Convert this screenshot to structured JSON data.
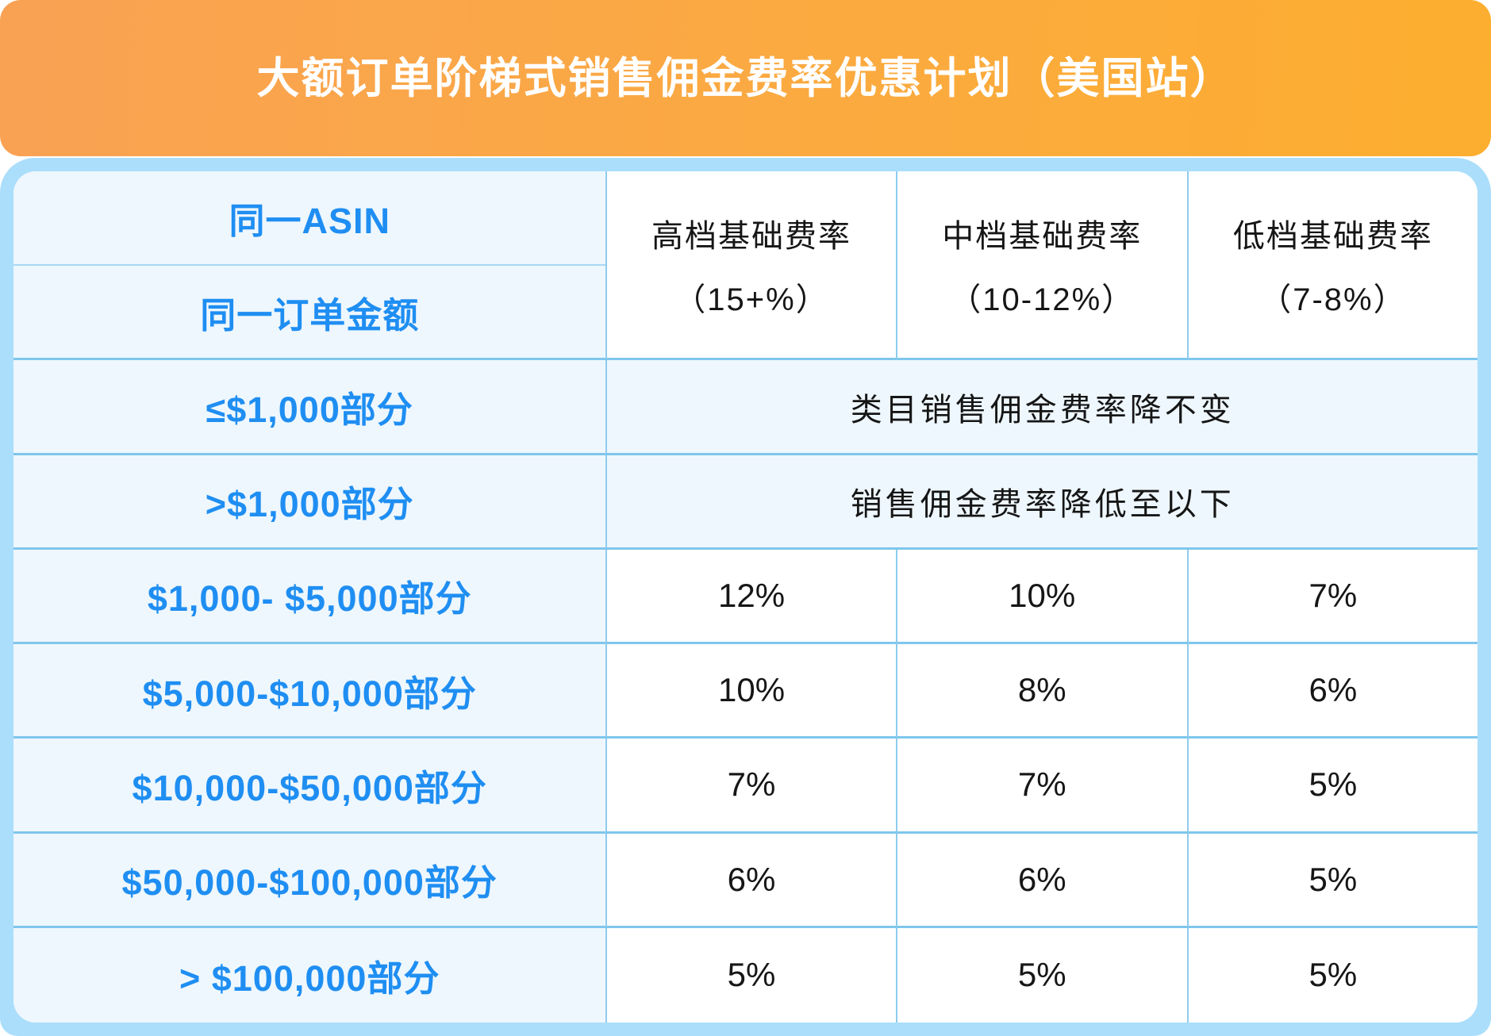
{
  "title": "大额订单阶梯式销售佣金费率优惠计划（美国站）",
  "colors": {
    "banner_gradient_left": "#f9a254",
    "banner_gradient_right": "#fcae2f",
    "card_border_blue": "#abdefb",
    "cell_light_blue": "#eef7fd",
    "divider_blue": "#7fc6ec",
    "label_blue": "#1f8ef2",
    "text_black": "#161616",
    "title_white": "#ffffff"
  },
  "table": {
    "row_headers": [
      "同一ASIN",
      "同一订单金额"
    ],
    "rate_columns": [
      {
        "label": "高档基础费率",
        "range": "（15+%）"
      },
      {
        "label": "中档基础费率",
        "range": "（10-12%）"
      },
      {
        "label": "低档基础费率",
        "range": "（7-8%）"
      }
    ],
    "band_rows": [
      {
        "label": "≤$1,000部分",
        "note": "类目销售佣金费率降不变"
      },
      {
        "label": ">$1,000部分",
        "note": "销售佣金费率降低至以下"
      }
    ],
    "tier_rows": [
      {
        "label": "$1,000- $5,000部分",
        "rates": [
          "12%",
          "10%",
          "7%"
        ]
      },
      {
        "label": "$5,000-$10,000部分",
        "rates": [
          "10%",
          "8%",
          "6%"
        ]
      },
      {
        "label": "$10,000-$50,000部分",
        "rates": [
          "7%",
          "7%",
          "5%"
        ]
      },
      {
        "label": "$50,000-$100,000部分",
        "rates": [
          "6%",
          "6%",
          "5%"
        ]
      },
      {
        "label": "> $100,000部分",
        "rates": [
          "5%",
          "5%",
          "5%"
        ]
      }
    ]
  },
  "chart_data": {
    "type": "table",
    "title": "大额订单阶梯式销售佣金费率优惠计划（美国站）",
    "columns": [
      "同一ASIN / 同一订单金额",
      "高档基础费率（15+%）",
      "中档基础费率（10-12%）",
      "低档基础费率（7-8%）"
    ],
    "rows": [
      [
        "≤$1,000部分",
        "类目销售佣金费率降不变"
      ],
      [
        ">$1,000部分",
        "销售佣金费率降低至以下"
      ],
      [
        "$1,000- $5,000部分",
        "12%",
        "10%",
        "7%"
      ],
      [
        "$5,000-$10,000部分",
        "10%",
        "8%",
        "6%"
      ],
      [
        "$10,000-$50,000部分",
        "7%",
        "7%",
        "5%"
      ],
      [
        "$50,000-$100,000部分",
        "6%",
        "6%",
        "5%"
      ],
      [
        "> $100,000部分",
        "5%",
        "5%",
        "5%"
      ]
    ]
  }
}
